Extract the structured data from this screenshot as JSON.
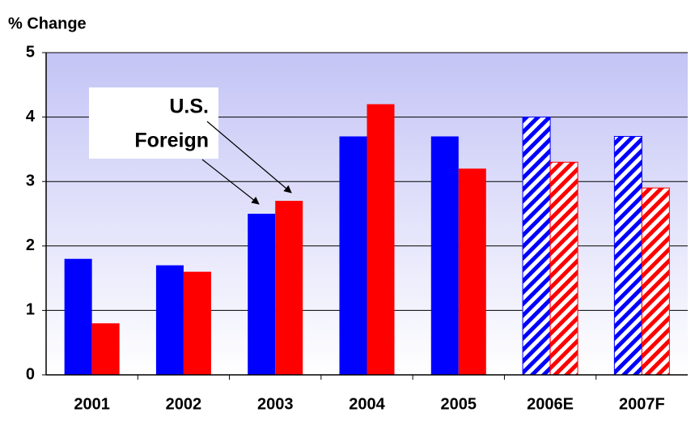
{
  "chart_data": {
    "type": "bar",
    "y_label": "% Change",
    "categories": [
      "2001",
      "2002",
      "2003",
      "2004",
      "2005",
      "2006E",
      "2007F"
    ],
    "series": [
      {
        "name": "U.S.",
        "color": "#0000ff",
        "values": [
          1.8,
          1.7,
          2.5,
          3.7,
          3.7,
          4.0,
          3.7
        ]
      },
      {
        "name": "Foreign",
        "color": "#ff0000",
        "values": [
          0.8,
          1.6,
          2.7,
          4.2,
          3.2,
          3.3,
          2.9
        ]
      }
    ],
    "hatched": [
      false,
      false,
      false,
      false,
      false,
      true,
      true
    ],
    "ylim": [
      0,
      5
    ],
    "yticks": [
      0,
      1,
      2,
      3,
      4,
      5
    ],
    "grid": true
  }
}
